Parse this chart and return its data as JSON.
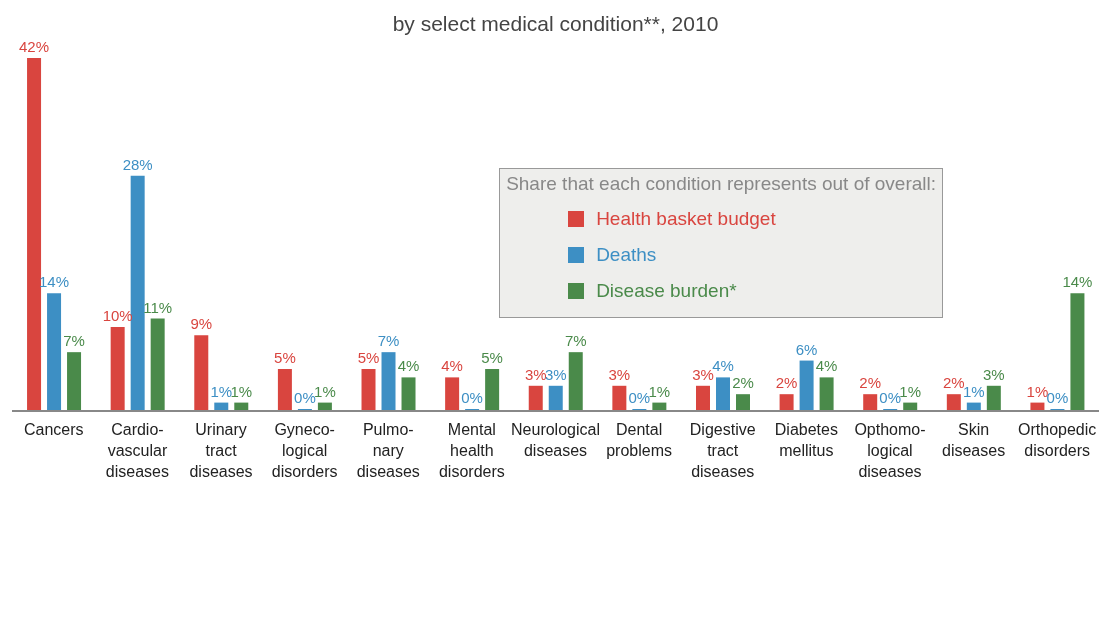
{
  "chart_data": {
    "type": "bar",
    "title": "by select medical condition**, 2010",
    "legend_title": "Share that each condition represents out of overall:",
    "legend": "center",
    "grid": false,
    "categories": [
      "Cancers",
      "Cardio-\nvascular\ndiseases",
      "Urinary\ntract\ndiseases",
      "Gyneco-\nlogical\ndisorders",
      "Pulmo-\nnary\ndiseases",
      "Mental\nhealth\ndisorders",
      "Neurological\ndiseases",
      "Dental\nproblems",
      "Digestive\ntract\ndiseases",
      "Diabetes\nmellitus",
      "Opthomo-\nlogical\ndiseases",
      "Skin\ndiseases",
      "Orthopedic\ndisorders"
    ],
    "series": [
      {
        "name": "Health basket budget",
        "color": "#d9453f",
        "values": [
          42,
          10,
          9,
          5,
          5,
          4,
          3,
          3,
          3,
          2,
          2,
          2,
          1
        ],
        "value_labels": [
          "42%",
          "10%",
          "9%",
          "5%",
          "5%",
          "4%",
          "3%",
          "3%",
          "3%",
          "2%",
          "2%",
          "2%",
          "1%"
        ]
      },
      {
        "name": "Deaths",
        "color": "#3d8fc4",
        "values": [
          14,
          28,
          1,
          0,
          7,
          0,
          3,
          0,
          4,
          6,
          0,
          1,
          0
        ],
        "value_labels": [
          "14%",
          "28%",
          "1%",
          "0%",
          "7%",
          "0%",
          "3%",
          "0%",
          "4%",
          "6%",
          "0%",
          "1%",
          "0%"
        ]
      },
      {
        "name": "Disease burden*",
        "color": "#4a8a4a",
        "values": [
          7,
          11,
          1,
          1,
          4,
          5,
          7,
          1,
          2,
          4,
          1,
          3,
          14
        ],
        "value_labels": [
          "7%",
          "11%",
          "1%",
          "1%",
          "4%",
          "5%",
          "7%",
          "1%",
          "2%",
          "4%",
          "1%",
          "3%",
          "14%"
        ]
      }
    ]
  }
}
